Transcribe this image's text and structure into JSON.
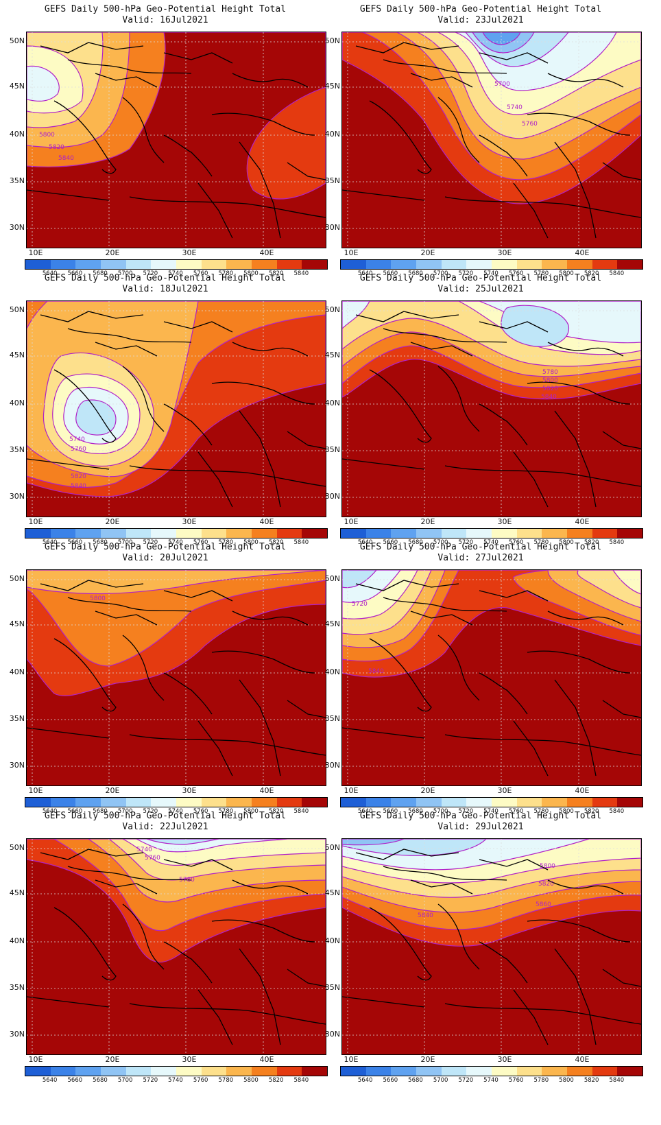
{
  "title_line": "GEFS Daily 500-hPa Geo-Potential Height Total",
  "valid_prefix": "Valid: ",
  "y_ticks": [
    "50N",
    "45N",
    "40N",
    "35N",
    "30N"
  ],
  "x_ticks": [
    "10E",
    "20E",
    "30E",
    "40E"
  ],
  "colorbar": {
    "levels": [
      "5640",
      "5660",
      "5680",
      "5700",
      "5720",
      "5740",
      "5760",
      "5780",
      "5800",
      "5820",
      "5840"
    ],
    "colors": [
      "#1e5fd6",
      "#3b82e8",
      "#5fa2f0",
      "#90c4f4",
      "#bfe6f8",
      "#e6f8fb",
      "#fdfbc4",
      "#fde08c",
      "#fbb64e",
      "#f5801f",
      "#e43a10",
      "#a50606"
    ]
  },
  "panels": [
    {
      "valid": "16Jul2021",
      "contour_labels": [
        "5800",
        "5820",
        "5840"
      ]
    },
    {
      "valid": "23Jul2021",
      "contour_labels": [
        "5700",
        "5740",
        "5760"
      ]
    },
    {
      "valid": "18Jul2021",
      "contour_labels": [
        "5740",
        "5760",
        "5820",
        "5840"
      ]
    },
    {
      "valid": "25Jul2021",
      "contour_labels": [
        "5780",
        "5800",
        "5820",
        "5840"
      ]
    },
    {
      "valid": "20Jul2021",
      "contour_labels": [
        "5800"
      ]
    },
    {
      "valid": "27Jul2021",
      "contour_labels": [
        "5720",
        "5840"
      ]
    },
    {
      "valid": "22Jul2021",
      "contour_labels": [
        "5740",
        "5760",
        "5780"
      ]
    },
    {
      "valid": "29Jul2021",
      "contour_labels": [
        "5800",
        "5820",
        "5840",
        "5860"
      ]
    }
  ]
}
